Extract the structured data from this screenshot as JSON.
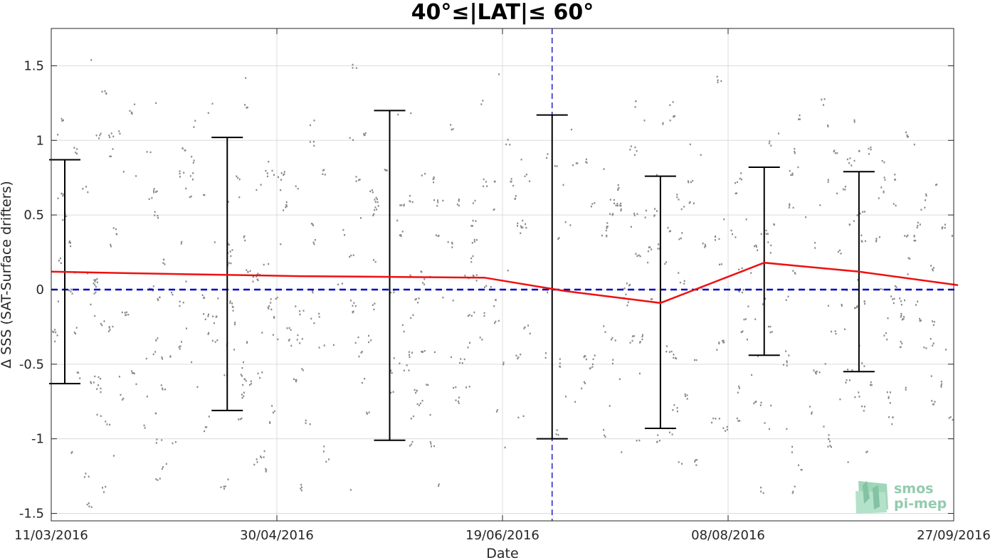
{
  "chart_data": {
    "type": "line",
    "title": "40°≤|LAT|≤ 60°",
    "xlabel": "Date",
    "ylabel": "Δ SSS (SAT-Surface drifters)",
    "xlim": [
      "2016-03-11",
      "2016-09-27"
    ],
    "ylim": [
      -1.55,
      1.75
    ],
    "x_ticks": [
      "11/03/2016",
      "30/04/2016",
      "19/06/2016",
      "08/08/2016",
      "27/09/2016"
    ],
    "y_ticks": [
      "1.5",
      "1",
      "0.5",
      "0",
      "-0.5",
      "-1",
      "-1.5"
    ],
    "grid": true,
    "reference_line": {
      "y": 0,
      "color": "#0000c8",
      "style": "dashed"
    },
    "vertical_marker": {
      "x": "2016-06-30",
      "color": "#0000c8",
      "style": "dashed"
    },
    "series": [
      {
        "color": "#ee1111",
        "x": [
          "2016-03-11",
          "2016-03-28",
          "2016-04-16",
          "2016-05-05",
          "2016-05-25",
          "2016-06-15",
          "2016-07-03",
          "2016-07-24",
          "2016-08-16",
          "2016-09-06",
          "2016-09-27"
        ],
        "y": [
          0.12,
          0.11,
          0.1,
          0.09,
          0.085,
          0.08,
          -0.01,
          -0.09,
          0.18,
          0.12,
          0.03
        ]
      }
    ],
    "error_bars": {
      "color": "#000000",
      "x": [
        "2016-03-14",
        "2016-04-19",
        "2016-05-25",
        "2016-06-30",
        "2016-07-24",
        "2016-08-16",
        "2016-09-06"
      ],
      "low": [
        -0.63,
        -0.81,
        -1.01,
        -1.0,
        -0.93,
        -0.44,
        -0.55
      ],
      "high": [
        0.87,
        1.02,
        1.2,
        1.17,
        0.76,
        0.82,
        0.79
      ]
    },
    "scatter_color": "#888888"
  },
  "logo": {
    "line1": "smos",
    "line2": "pi-mep"
  }
}
